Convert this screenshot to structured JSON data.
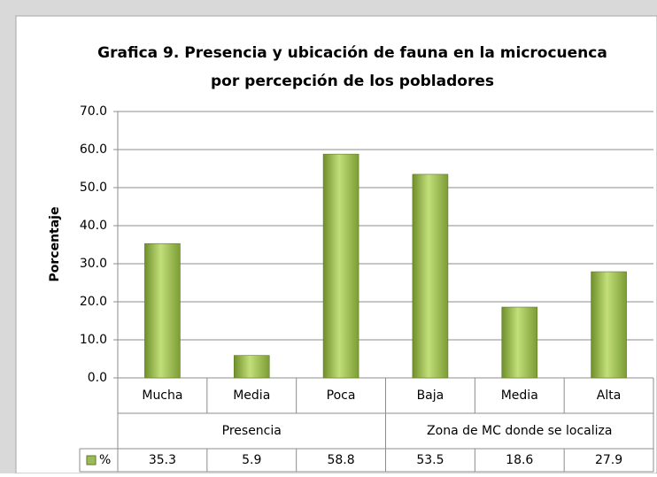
{
  "chart_data": {
    "type": "bar",
    "title": [
      "Grafica 9. Presencia y ubicación de fauna en la microcuenca",
      "por percepción de los pobladores"
    ],
    "y_label": "Porcentaje",
    "categories": [
      "Mucha",
      "Media",
      "Poca",
      "Baja",
      "Media",
      "Alta"
    ],
    "category_groups": [
      "Presencia",
      "Presencia",
      "Presencia",
      "Zona de MC donde se localiza",
      "Zona de MC donde se localiza",
      "Zona de MC donde se localiza"
    ],
    "series": [
      {
        "name": "%",
        "color": "#9bbb59",
        "values": [
          35.3,
          5.9,
          58.8,
          53.5,
          18.6,
          27.9
        ]
      }
    ],
    "ylim": [
      0,
      70
    ],
    "yticks": [
      {
        "value": 0,
        "label": "0.0"
      },
      {
        "value": 10,
        "label": "10.0"
      },
      {
        "value": 20,
        "label": "20.0"
      },
      {
        "value": 30,
        "label": "30.0"
      },
      {
        "value": 40,
        "label": "40.0"
      },
      {
        "value": 50,
        "label": "50.0"
      },
      {
        "value": 60,
        "label": "60.0"
      },
      {
        "value": 70,
        "label": "70.0"
      }
    ],
    "grid": true,
    "data_table": true
  }
}
